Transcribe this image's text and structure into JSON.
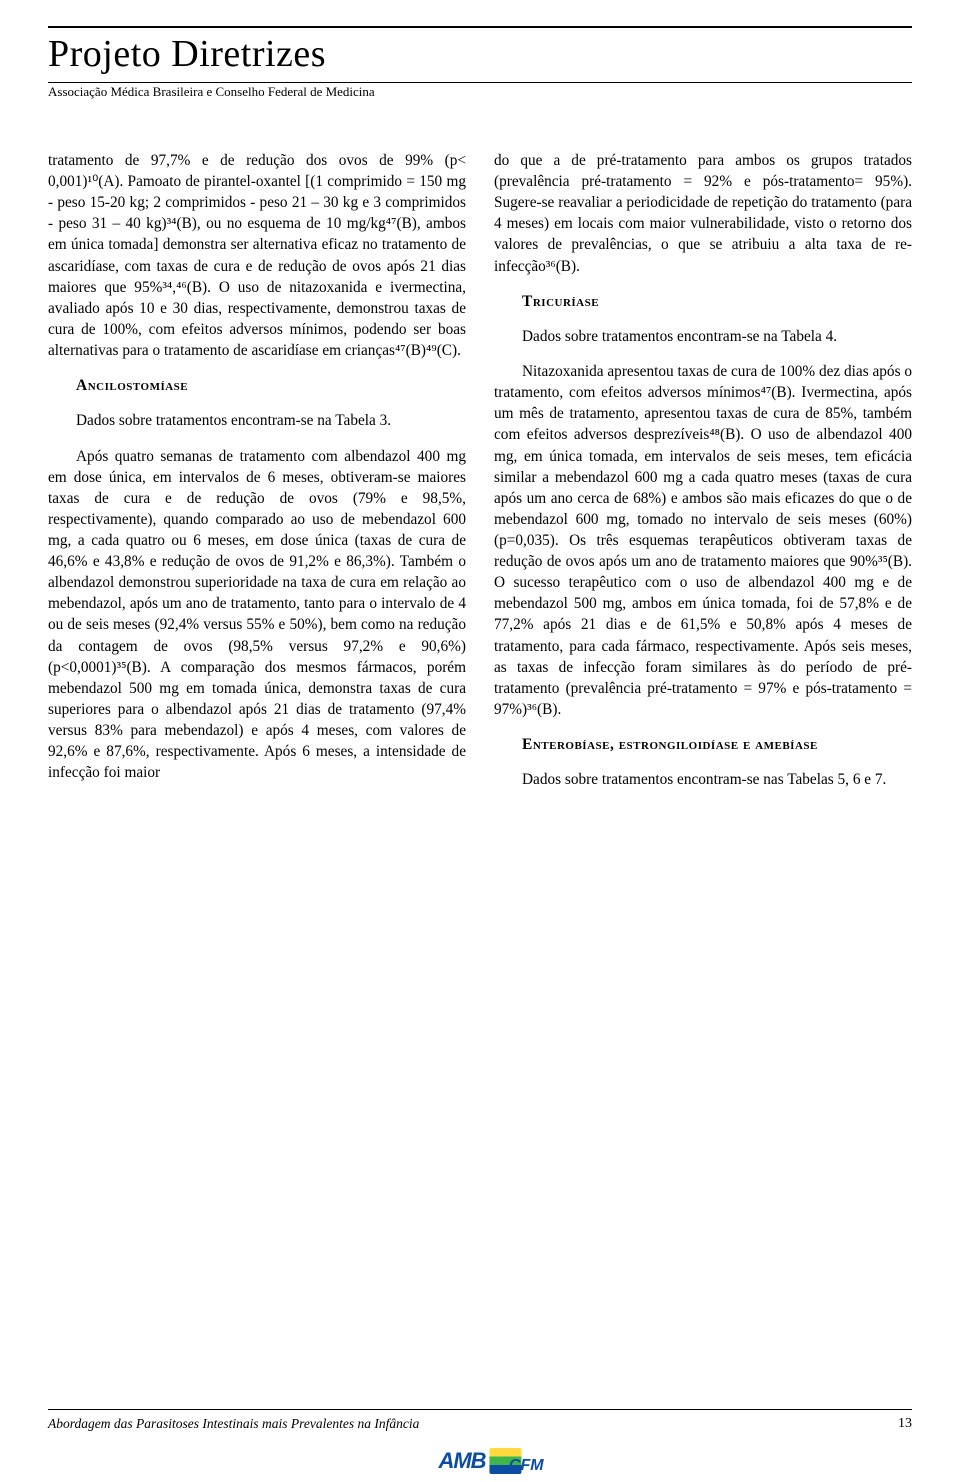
{
  "header": {
    "title": "Projeto Diretrizes",
    "subtitle": "Associação Médica Brasileira e Conselho Federal de Medicina"
  },
  "sections": {
    "ancilostomiase": "Ancilostomíase",
    "tricuriase": "Tricuríase",
    "enterobiase": "Enterobíase, estrongiloidíase e amebíase"
  },
  "paragraphs": {
    "p1": "tratamento de 97,7% e de redução dos ovos de 99% (p< 0,001)¹⁰(A). Pamoato de pirantel-oxantel [(1 comprimido = 150 mg - peso 15-20 kg; 2 comprimidos - peso 21 – 30 kg e 3 comprimidos - peso 31 – 40 kg)³⁴(B), ou no esquema de 10 mg/kg⁴⁷(B), ambos em única tomada] demonstra ser alternativa eficaz no tratamento de ascaridíase, com taxas de cura e de redução de ovos após 21 dias maiores que 95%³⁴,⁴⁶(B). O uso de nitazoxanida e ivermectina, avaliado após 10 e 30 dias, respectivamente, demonstrou taxas de cura de 100%, com efeitos adversos mínimos, podendo ser boas alternativas para o tratamento de ascaridíase em crianças⁴⁷(B)⁴⁹(C).",
    "p2": "Dados sobre tratamentos encontram-se na Tabela 3.",
    "p3": "Após quatro semanas de tratamento com albendazol 400 mg em dose única, em intervalos de 6 meses, obtiveram-se maiores taxas de cura e de redução de ovos (79% e 98,5%, respectivamente), quando comparado ao uso de mebendazol 600 mg, a cada quatro ou 6 meses, em dose única (taxas de cura de 46,6% e 43,8% e redução de ovos de 91,2% e 86,3%). Também o albendazol demonstrou superioridade na taxa de cura em relação ao mebendazol, após um ano de tratamento, tanto para o intervalo de 4 ou de seis meses (92,4% versus 55% e 50%), bem como na redução da contagem de ovos (98,5% versus 97,2% e 90,6%) (p<0,0001)³⁵(B). A comparação dos mesmos fármacos, porém mebendazol 500 mg em tomada única, demonstra taxas de cura superiores para o albendazol após 21 dias de tratamento (97,4% versus 83% para mebendazol) e após 4 meses, com valores de 92,6% e 87,6%, respectivamente. Após 6 meses, a intensidade de infecção foi maior",
    "p4": "do que a de pré-tratamento para ambos os grupos tratados (prevalência pré-tratamento = 92% e pós-tratamento= 95%). Sugere-se reavaliar a periodicidade de repetição do tratamento (para 4 meses) em locais com maior vulnerabilidade, visto o retorno dos valores de prevalências, o que se atribuiu a alta taxa de re-infecção³⁶(B).",
    "p5": "Dados sobre tratamentos encontram-se na Tabela 4.",
    "p6": "Nitazoxanida apresentou taxas de cura de 100% dez dias após o tratamento, com efeitos adversos mínimos⁴⁷(B). Ivermectina, após um mês de tratamento, apresentou taxas de cura de 85%, também com efeitos adversos desprezíveis⁴⁸(B). O uso de albendazol 400 mg, em única tomada, em intervalos de seis meses, tem eficácia similar a mebendazol 600 mg a cada quatro meses (taxas de cura após um ano cerca de 68%) e ambos são mais eficazes do que o de mebendazol 600 mg, tomado no intervalo de seis meses (60%) (p=0,035). Os três esquemas terapêuticos obtiveram taxas de redução de ovos após um ano de tratamento maiores que 90%³⁵(B). O sucesso terapêutico com o uso de albendazol 400 mg e de mebendazol 500 mg, ambos em única tomada, foi de 57,8% e de 77,2% após 21 dias e de 61,5% e 50,8% após 4 meses de tratamento, para cada fármaco, respectivamente. Após seis meses, as taxas de infecção foram similares às do período de pré-tratamento (prevalência pré-tratamento = 97% e pós-tratamento = 97%)³⁶(B).",
    "p7": "Dados sobre tratamentos encontram-se nas Tabelas 5, 6 e 7."
  },
  "footer": {
    "text": "Abordagem das Parasitoses Intestinais mais Prevalentes na Infância",
    "page": "13"
  },
  "logos": {
    "amb": "AMB"
  }
}
